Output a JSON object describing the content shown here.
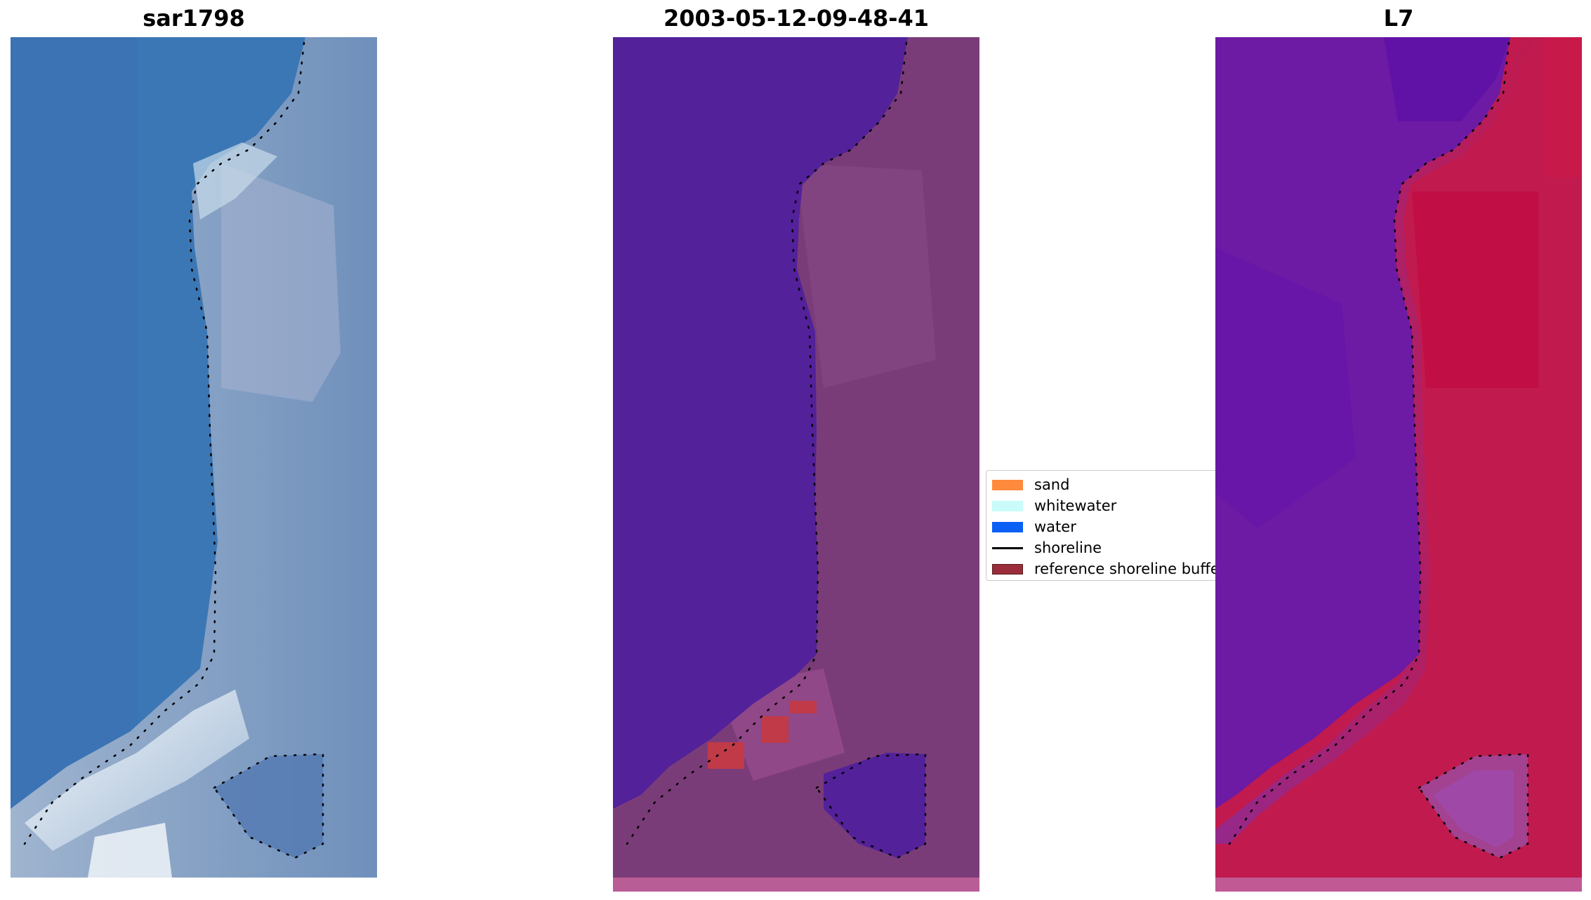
{
  "panels": [
    {
      "title": "sar1798",
      "style": "rgb",
      "colors": {
        "water": "#3d78b4",
        "land": "#6d8eb5",
        "shoreline_zone": "#b8d3e5",
        "pond": "#5579ad",
        "white": "#f4f8fb"
      }
    },
    {
      "title": "2003-05-12-09-48-41",
      "style": "classified",
      "colors": {
        "water": "#53219a",
        "land": "#7a3c79",
        "sand_accent": "#b45a92",
        "buffer_red": "#c03a48"
      }
    },
    {
      "title": "L7",
      "style": "index",
      "colors": {
        "water": "#6d1aa5",
        "land": "#c01a4e",
        "transition": "#a24290"
      }
    }
  ],
  "legend": {
    "items": [
      {
        "label": "sand",
        "color": "#ff8a3d",
        "kind": "patch"
      },
      {
        "label": "whitewater",
        "color": "#c9fbfb",
        "kind": "patch"
      },
      {
        "label": "water",
        "color": "#0a5ff5",
        "kind": "patch"
      },
      {
        "label": "shoreline",
        "color": "#000000",
        "kind": "line"
      },
      {
        "label": "reference shoreline buffer",
        "color": "#9b2d3a",
        "kind": "patch"
      }
    ]
  }
}
